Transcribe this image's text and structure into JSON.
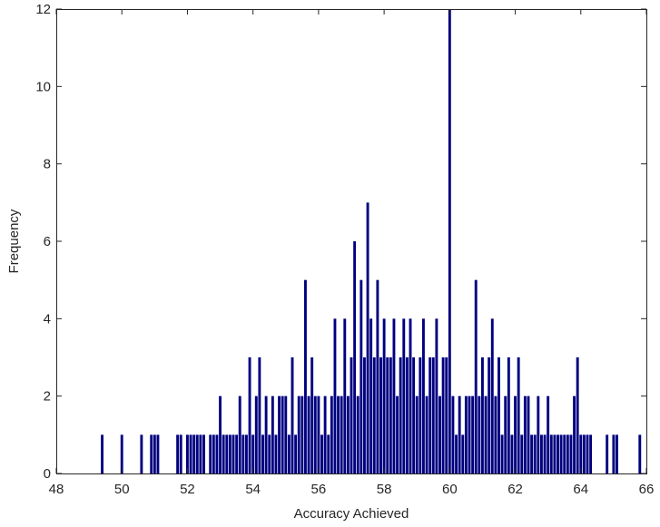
{
  "chart_data": {
    "type": "bar",
    "title": "",
    "xlabel": "Accuracy Achieved",
    "ylabel": "Frequency",
    "xlim": [
      48,
      66
    ],
    "ylim": [
      0,
      12
    ],
    "xticks": [
      48,
      50,
      52,
      54,
      56,
      58,
      60,
      62,
      64,
      66
    ],
    "yticks": [
      0,
      2,
      4,
      6,
      8,
      10,
      12
    ],
    "grid": false,
    "bar_color": "#000080",
    "bin_width": 0.05,
    "x": [
      49.4,
      50.0,
      50.6,
      50.9,
      51.0,
      51.1,
      51.7,
      51.8,
      52.0,
      52.1,
      52.2,
      52.3,
      52.4,
      52.5,
      52.7,
      52.8,
      52.9,
      53.0,
      53.1,
      53.2,
      53.3,
      53.4,
      53.5,
      53.6,
      53.7,
      53.8,
      53.9,
      54.0,
      54.1,
      54.2,
      54.3,
      54.4,
      54.5,
      54.6,
      54.7,
      54.8,
      54.9,
      55.0,
      55.1,
      55.2,
      55.3,
      55.4,
      55.5,
      55.6,
      55.7,
      55.8,
      55.9,
      56.0,
      56.1,
      56.2,
      56.3,
      56.4,
      56.5,
      56.6,
      56.7,
      56.8,
      56.9,
      57.0,
      57.1,
      57.2,
      57.3,
      57.4,
      57.5,
      57.6,
      57.7,
      57.8,
      57.9,
      58.0,
      58.1,
      58.2,
      58.3,
      58.4,
      58.5,
      58.6,
      58.7,
      58.8,
      58.9,
      59.0,
      59.1,
      59.2,
      59.3,
      59.4,
      59.5,
      59.6,
      59.7,
      59.8,
      59.9,
      60.0,
      60.1,
      60.2,
      60.3,
      60.4,
      60.5,
      60.6,
      60.7,
      60.8,
      60.9,
      61.0,
      61.1,
      61.2,
      61.3,
      61.4,
      61.5,
      61.6,
      61.7,
      61.8,
      61.9,
      62.0,
      62.1,
      62.2,
      62.3,
      62.4,
      62.5,
      62.6,
      62.7,
      62.8,
      62.9,
      63.0,
      63.1,
      63.2,
      63.3,
      63.4,
      63.5,
      63.6,
      63.7,
      63.8,
      63.9,
      64.0,
      64.1,
      64.2,
      64.3,
      64.8,
      65.0,
      65.1,
      65.8
    ],
    "values": [
      1,
      1,
      1,
      1,
      1,
      1,
      1,
      1,
      1,
      1,
      1,
      1,
      1,
      1,
      1,
      1,
      1,
      2,
      1,
      1,
      1,
      1,
      1,
      2,
      1,
      1,
      3,
      1,
      2,
      3,
      1,
      2,
      1,
      2,
      1,
      2,
      2,
      2,
      1,
      3,
      1,
      2,
      2,
      5,
      2,
      3,
      2,
      2,
      1,
      2,
      1,
      2,
      4,
      2,
      2,
      4,
      2,
      3,
      6,
      2,
      5,
      3,
      7,
      4,
      3,
      5,
      3,
      4,
      3,
      3,
      4,
      2,
      3,
      4,
      3,
      4,
      3,
      2,
      3,
      4,
      2,
      3,
      3,
      4,
      2,
      3,
      3,
      12,
      2,
      1,
      2,
      1,
      2,
      2,
      2,
      5,
      2,
      3,
      2,
      3,
      4,
      2,
      3,
      1,
      2,
      3,
      1,
      2,
      3,
      1,
      2,
      2,
      1,
      1,
      2,
      1,
      1,
      2,
      1,
      1,
      1,
      1,
      1,
      1,
      1,
      2,
      3,
      1,
      1,
      1,
      1,
      1,
      1,
      1,
      1
    ]
  }
}
